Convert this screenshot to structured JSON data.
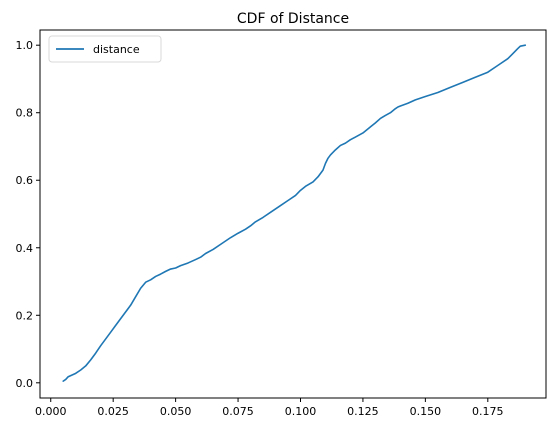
{
  "chart_data": {
    "type": "line",
    "title": "CDF of Distance",
    "xlabel": "",
    "ylabel": "",
    "xlim": [
      -0.0043,
      0.1983
    ],
    "ylim": [
      -0.045,
      1.045
    ],
    "xticks": [
      0.0,
      0.025,
      0.05,
      0.075,
      0.1,
      0.125,
      0.15,
      0.175
    ],
    "xtick_labels": [
      "0.000",
      "0.025",
      "0.050",
      "0.075",
      "0.100",
      "0.125",
      "0.150",
      "0.175"
    ],
    "yticks": [
      0.0,
      0.2,
      0.4,
      0.6,
      0.8,
      1.0
    ],
    "ytick_labels": [
      "0.0",
      "0.2",
      "0.4",
      "0.6",
      "0.8",
      "1.0"
    ],
    "grid": false,
    "legend": {
      "placement": "top-left"
    },
    "series": [
      {
        "name": "distance",
        "color": "#1f77b4",
        "x": [
          0.005,
          0.006,
          0.007,
          0.01,
          0.012,
          0.014,
          0.016,
          0.018,
          0.02,
          0.022,
          0.024,
          0.026,
          0.028,
          0.03,
          0.032,
          0.034,
          0.036,
          0.038,
          0.04,
          0.042,
          0.044,
          0.046,
          0.048,
          0.05,
          0.052,
          0.055,
          0.058,
          0.06,
          0.062,
          0.065,
          0.068,
          0.07,
          0.072,
          0.075,
          0.078,
          0.08,
          0.082,
          0.085,
          0.088,
          0.09,
          0.092,
          0.095,
          0.098,
          0.1,
          0.102,
          0.105,
          0.107,
          0.109,
          0.11,
          0.111,
          0.112,
          0.114,
          0.116,
          0.118,
          0.12,
          0.122,
          0.125,
          0.128,
          0.13,
          0.132,
          0.134,
          0.136,
          0.138,
          0.139,
          0.14,
          0.143,
          0.146,
          0.15,
          0.155,
          0.16,
          0.165,
          0.17,
          0.175,
          0.178,
          0.18,
          0.183,
          0.185,
          0.187,
          0.188,
          0.19
        ],
        "y": [
          0.005,
          0.01,
          0.018,
          0.028,
          0.038,
          0.05,
          0.068,
          0.088,
          0.11,
          0.13,
          0.15,
          0.17,
          0.19,
          0.21,
          0.23,
          0.255,
          0.28,
          0.298,
          0.305,
          0.315,
          0.322,
          0.33,
          0.337,
          0.34,
          0.347,
          0.355,
          0.365,
          0.372,
          0.383,
          0.395,
          0.41,
          0.42,
          0.43,
          0.443,
          0.455,
          0.465,
          0.477,
          0.49,
          0.505,
          0.515,
          0.525,
          0.54,
          0.555,
          0.57,
          0.582,
          0.595,
          0.61,
          0.63,
          0.65,
          0.665,
          0.675,
          0.69,
          0.703,
          0.71,
          0.72,
          0.728,
          0.74,
          0.758,
          0.77,
          0.783,
          0.792,
          0.8,
          0.812,
          0.817,
          0.82,
          0.828,
          0.838,
          0.848,
          0.86,
          0.875,
          0.89,
          0.905,
          0.92,
          0.935,
          0.945,
          0.96,
          0.975,
          0.99,
          0.997,
          1.0
        ]
      }
    ]
  }
}
